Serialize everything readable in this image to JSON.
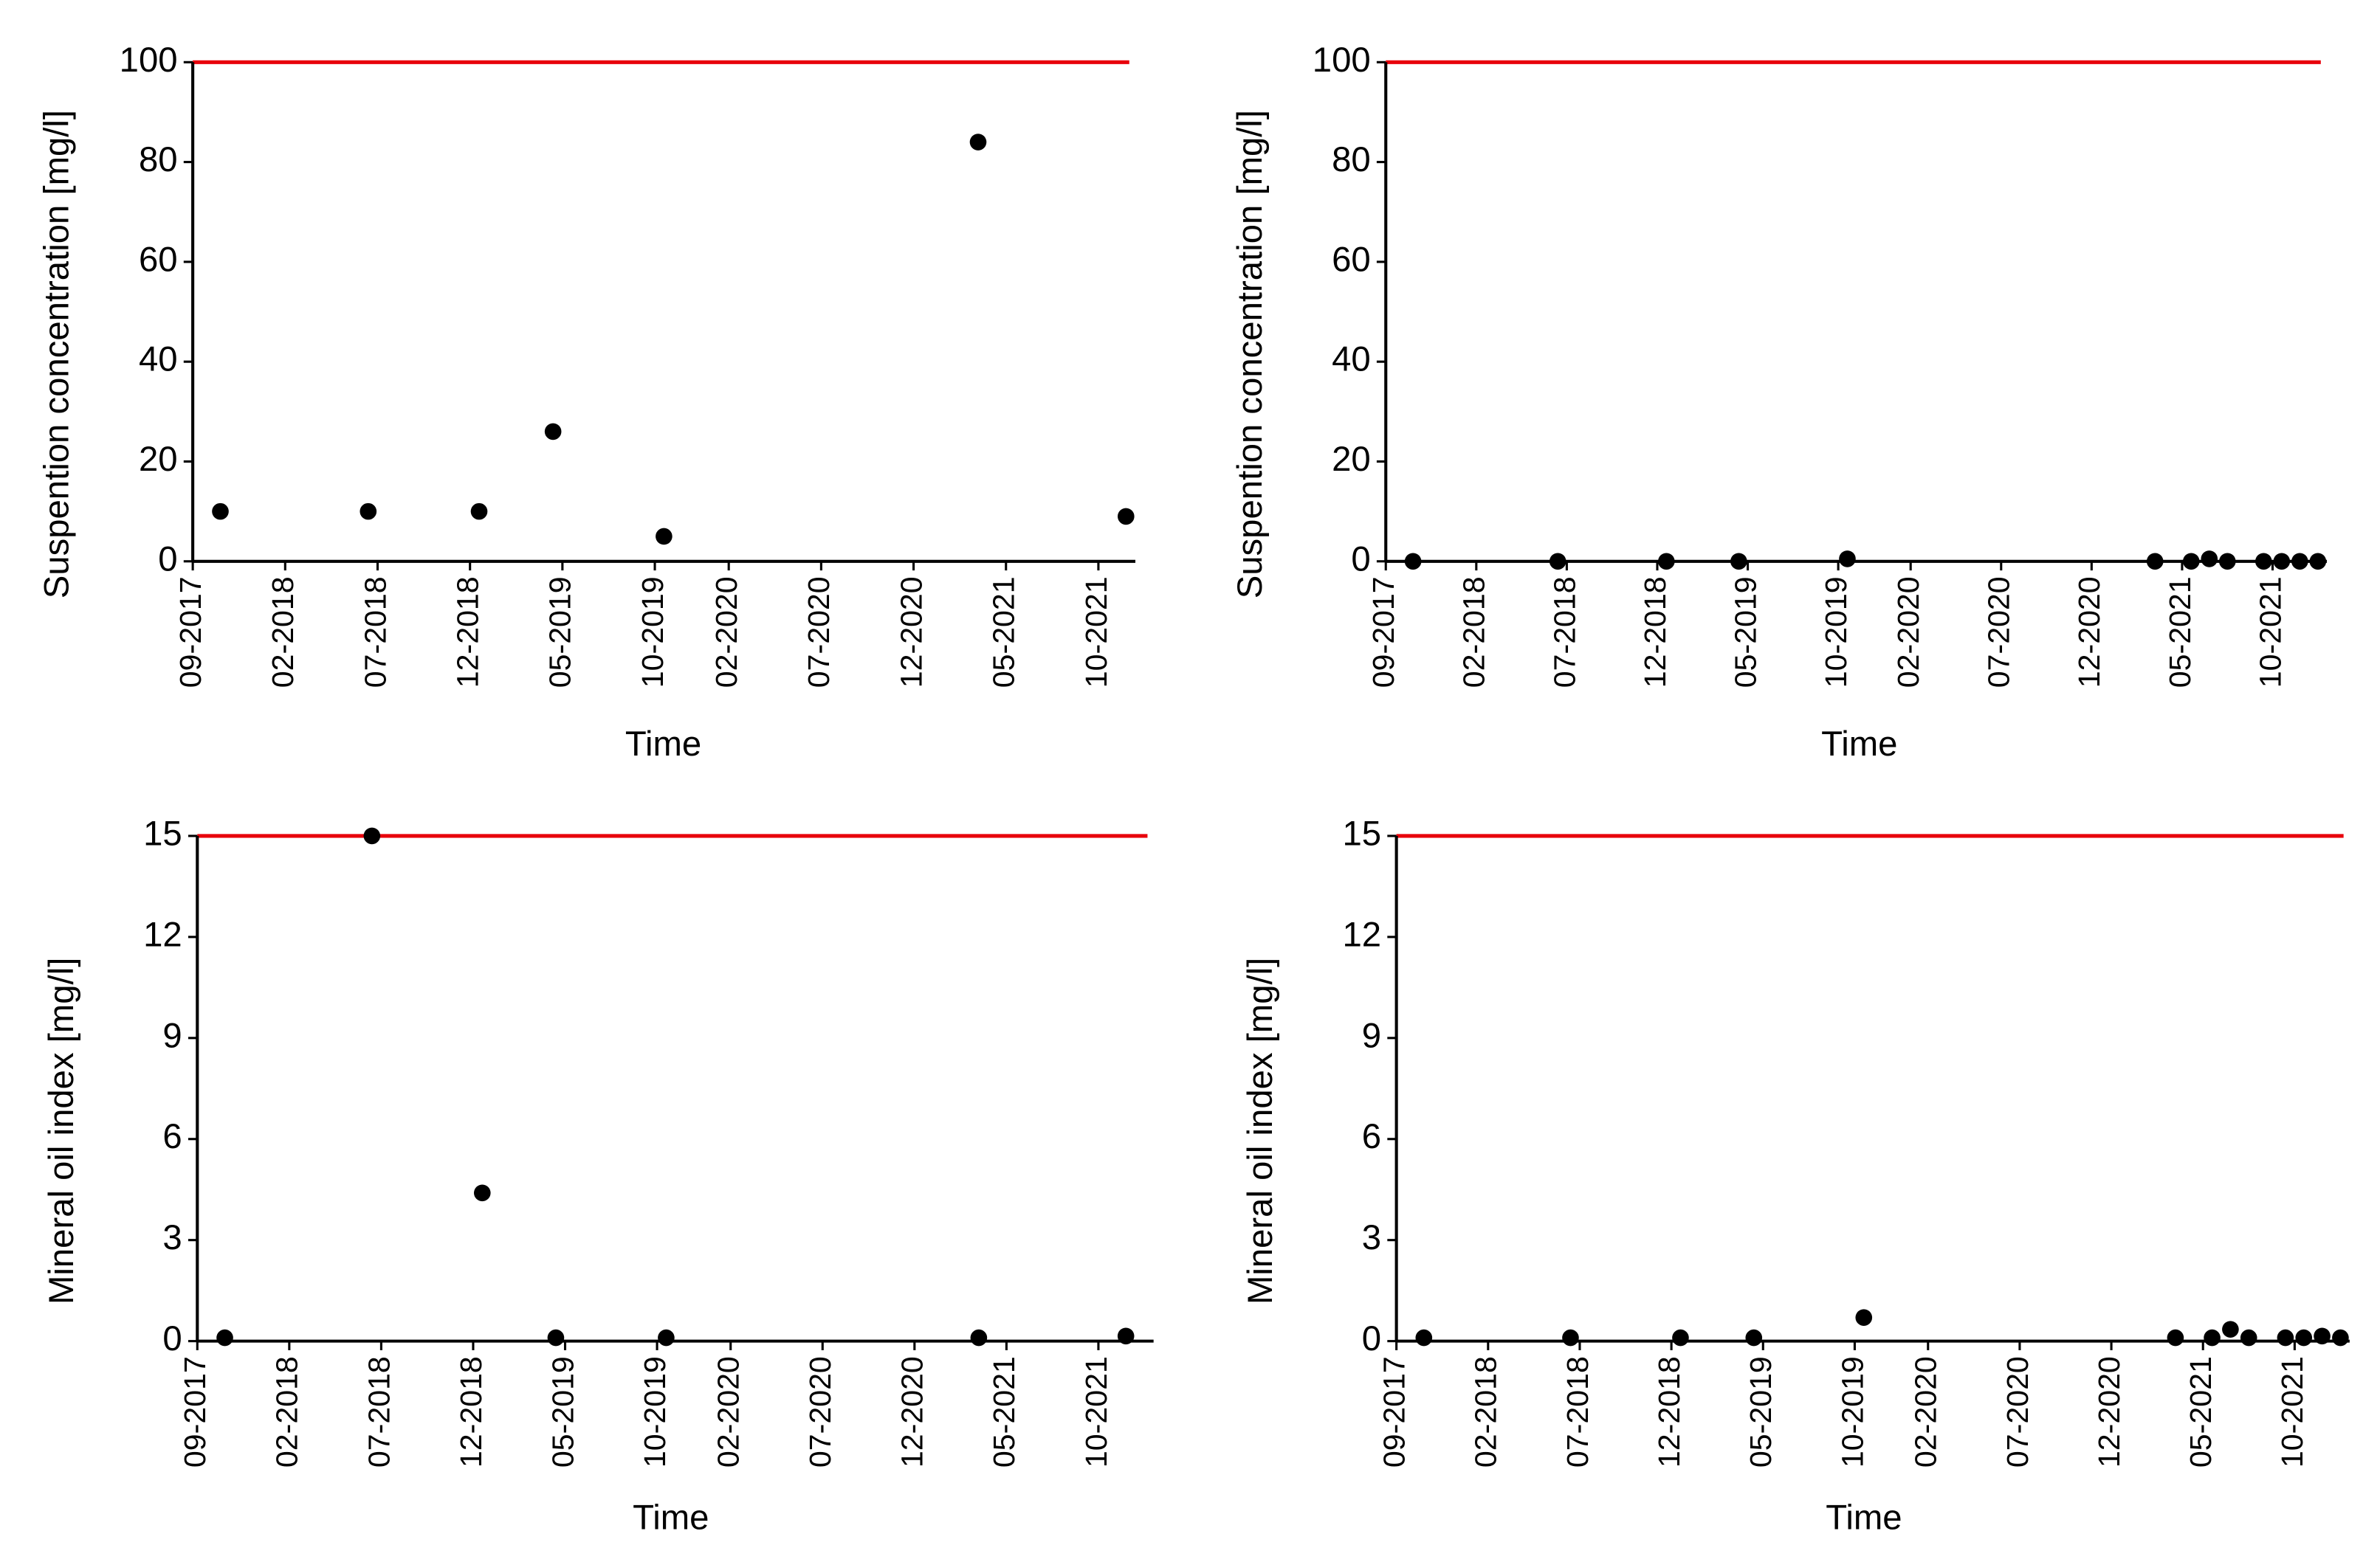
{
  "chart_data": [
    {
      "type": "scatter",
      "y_label": "Suspention concentration [mg/l]",
      "x_label": "Time",
      "color": "#000000",
      "x": [
        "2017-10",
        "2018-06",
        "2018-12",
        "2019-04",
        "2019-10",
        "2021-03",
        "2021-11"
      ],
      "values": [
        10,
        10,
        10,
        26,
        5,
        84,
        9
      ],
      "threshold": {
        "value": 100,
        "color": "#e8000b"
      },
      "ylim": [
        0,
        100
      ],
      "yticks": [
        0,
        20,
        40,
        60,
        80,
        100
      ],
      "xlim": [
        "2017-09",
        "2021-12"
      ],
      "xticks": [
        {
          "value": "2017-09",
          "label": "09-2017"
        },
        {
          "value": "2018-02",
          "label": "02-2018"
        },
        {
          "value": "2018-07",
          "label": "07-2018"
        },
        {
          "value": "2018-12",
          "label": "12-2018"
        },
        {
          "value": "2019-05",
          "label": "05-2019"
        },
        {
          "value": "2019-10",
          "label": "10-2019"
        },
        {
          "value": "2020-02",
          "label": "02-2020"
        },
        {
          "value": "2020-07",
          "label": "07-2020"
        },
        {
          "value": "2020-12",
          "label": "12-2020"
        },
        {
          "value": "2021-05",
          "label": "05-2021"
        },
        {
          "value": "2021-10",
          "label": "10-2021"
        }
      ]
    },
    {
      "type": "scatter",
      "y_label": "Suspention concentration [mg/l]",
      "x_label": "Time",
      "color": "#000000",
      "x": [
        "2017-10",
        "2018-06",
        "2018-12",
        "2019-04",
        "2019-10",
        "2021-03",
        "2021-05",
        "2021-06",
        "2021-07",
        "2021-09",
        "2021-10",
        "2021-11",
        "2021-12"
      ],
      "values": [
        0,
        0,
        0,
        0,
        0.5,
        0,
        0,
        0.5,
        0,
        0,
        0,
        0,
        0
      ],
      "threshold": {
        "value": 100,
        "color": "#e8000b"
      },
      "ylim": [
        0,
        100
      ],
      "yticks": [
        0,
        20,
        40,
        60,
        80,
        100
      ],
      "xlim": [
        "2017-09",
        "2022-01"
      ],
      "xticks": [
        {
          "value": "2017-09",
          "label": "09-2017"
        },
        {
          "value": "2018-02",
          "label": "02-2018"
        },
        {
          "value": "2018-07",
          "label": "07-2018"
        },
        {
          "value": "2018-12",
          "label": "12-2018"
        },
        {
          "value": "2019-05",
          "label": "05-2019"
        },
        {
          "value": "2019-10",
          "label": "10-2019"
        },
        {
          "value": "2020-02",
          "label": "02-2020"
        },
        {
          "value": "2020-07",
          "label": "07-2020"
        },
        {
          "value": "2020-12",
          "label": "12-2020"
        },
        {
          "value": "2021-05",
          "label": "05-2021"
        },
        {
          "value": "2021-10",
          "label": "10-2021"
        }
      ]
    },
    {
      "type": "scatter",
      "y_label": "Mineral oil index [mg/l]",
      "x_label": "Time",
      "color": "#000000",
      "x": [
        "2017-10",
        "2018-06",
        "2018-12",
        "2019-04",
        "2019-10",
        "2021-03",
        "2021-11"
      ],
      "values": [
        0.1,
        15,
        4.4,
        0.1,
        0.1,
        0.1,
        0.15
      ],
      "threshold": {
        "value": 15,
        "color": "#e8000b"
      },
      "ylim": [
        0,
        15
      ],
      "yticks": [
        0,
        3,
        6,
        9,
        12,
        15
      ],
      "xlim": [
        "2017-09",
        "2022-01"
      ],
      "xticks": [
        {
          "value": "2017-09",
          "label": "09-2017"
        },
        {
          "value": "2018-02",
          "label": "02-2018"
        },
        {
          "value": "2018-07",
          "label": "07-2018"
        },
        {
          "value": "2018-12",
          "label": "12-2018"
        },
        {
          "value": "2019-05",
          "label": "05-2019"
        },
        {
          "value": "2019-10",
          "label": "10-2019"
        },
        {
          "value": "2020-02",
          "label": "02-2020"
        },
        {
          "value": "2020-07",
          "label": "07-2020"
        },
        {
          "value": "2020-12",
          "label": "12-2020"
        },
        {
          "value": "2021-05",
          "label": "05-2021"
        },
        {
          "value": "2021-10",
          "label": "10-2021"
        }
      ]
    },
    {
      "type": "scatter",
      "y_label": "Mineral oil index [mg/l]",
      "x_label": "Time",
      "color": "#000000",
      "x": [
        "2017-10",
        "2018-06",
        "2018-12",
        "2019-04",
        "2019-10",
        "2021-03",
        "2021-05",
        "2021-06",
        "2021-07",
        "2021-09",
        "2021-10",
        "2021-11",
        "2021-12"
      ],
      "values": [
        0.1,
        0.1,
        0.1,
        0.1,
        0.7,
        0.1,
        0.1,
        0.35,
        0.1,
        0.1,
        0.1,
        0.15,
        0.1
      ],
      "threshold": {
        "value": 15,
        "color": "#e8000b"
      },
      "ylim": [
        0,
        15
      ],
      "yticks": [
        0,
        3,
        6,
        9,
        12,
        15
      ],
      "xlim": [
        "2017-09",
        "2022-01"
      ],
      "xticks": [
        {
          "value": "2017-09",
          "label": "09-2017"
        },
        {
          "value": "2018-02",
          "label": "02-2018"
        },
        {
          "value": "2018-07",
          "label": "07-2018"
        },
        {
          "value": "2018-12",
          "label": "12-2018"
        },
        {
          "value": "2019-05",
          "label": "05-2019"
        },
        {
          "value": "2019-10",
          "label": "10-2019"
        },
        {
          "value": "2020-02",
          "label": "02-2020"
        },
        {
          "value": "2020-07",
          "label": "07-2020"
        },
        {
          "value": "2020-12",
          "label": "12-2020"
        },
        {
          "value": "2021-05",
          "label": "05-2021"
        },
        {
          "value": "2021-10",
          "label": "10-2021"
        }
      ]
    }
  ]
}
